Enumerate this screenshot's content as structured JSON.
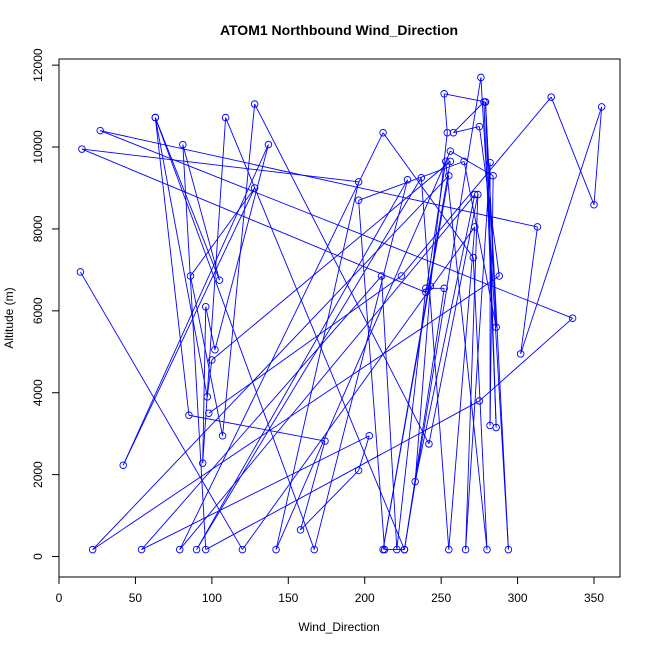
{
  "chart_data": {
    "type": "line",
    "title": "ATOM1 Northbound Wind_Direction",
    "xlabel": "Wind_Direction",
    "ylabel": "Altitude (m)",
    "xlim": [
      0,
      367
    ],
    "ylim": [
      -500,
      12150
    ],
    "x_ticks": [
      0,
      50,
      100,
      150,
      200,
      250,
      300,
      350
    ],
    "y_ticks": [
      0,
      2000,
      4000,
      6000,
      8000,
      10000,
      12000
    ],
    "series_color": "#0000ff",
    "marker": "open-circle",
    "grid": false,
    "legend": "none",
    "points": [
      {
        "x": 14,
        "y": 6950
      },
      {
        "x": 120,
        "y": 170
      },
      {
        "x": 272,
        "y": 8050
      },
      {
        "x": 255,
        "y": 170
      },
      {
        "x": 237,
        "y": 9250
      },
      {
        "x": 90,
        "y": 170
      },
      {
        "x": 228,
        "y": 9200
      },
      {
        "x": 167,
        "y": 170
      },
      {
        "x": 63,
        "y": 10720
      },
      {
        "x": 97,
        "y": 3900
      },
      {
        "x": 100,
        "y": 4800
      },
      {
        "x": 256,
        "y": 9650
      },
      {
        "x": 212,
        "y": 170
      },
      {
        "x": 255,
        "y": 9300
      },
      {
        "x": 22,
        "y": 170
      },
      {
        "x": 288,
        "y": 6850
      },
      {
        "x": 275,
        "y": 10500
      },
      {
        "x": 258,
        "y": 10350
      },
      {
        "x": 278,
        "y": 11100
      },
      {
        "x": 286,
        "y": 3150
      },
      {
        "x": 279,
        "y": 11100
      },
      {
        "x": 294,
        "y": 170
      },
      {
        "x": 276,
        "y": 11700
      },
      {
        "x": 226,
        "y": 170
      },
      {
        "x": 109,
        "y": 10720
      },
      {
        "x": 94,
        "y": 2280
      },
      {
        "x": 96,
        "y": 6100
      },
      {
        "x": 102,
        "y": 5050
      },
      {
        "x": 137,
        "y": 10060
      },
      {
        "x": 42,
        "y": 2230
      },
      {
        "x": 128,
        "y": 9000
      },
      {
        "x": 86,
        "y": 6850
      },
      {
        "x": 107,
        "y": 2950
      },
      {
        "x": 128,
        "y": 11050
      },
      {
        "x": 242,
        "y": 2750
      },
      {
        "x": 274,
        "y": 8840
      },
      {
        "x": 266,
        "y": 170
      },
      {
        "x": 282,
        "y": 9620
      },
      {
        "x": 282,
        "y": 3200
      },
      {
        "x": 284,
        "y": 9300
      },
      {
        "x": 256,
        "y": 9900
      },
      {
        "x": 142,
        "y": 170
      },
      {
        "x": 196,
        "y": 9150
      },
      {
        "x": 15,
        "y": 9950
      },
      {
        "x": 240,
        "y": 6450
      },
      {
        "x": 253,
        "y": 9650
      },
      {
        "x": 280,
        "y": 170
      },
      {
        "x": 271,
        "y": 7300
      },
      {
        "x": 212,
        "y": 10350
      },
      {
        "x": 79,
        "y": 170
      },
      {
        "x": 272,
        "y": 8840
      },
      {
        "x": 233,
        "y": 1830
      },
      {
        "x": 243,
        "y": 6600
      },
      {
        "x": 254,
        "y": 10350
      },
      {
        "x": 252,
        "y": 11300
      },
      {
        "x": 279,
        "y": 11100
      },
      {
        "x": 286,
        "y": 5600
      },
      {
        "x": 265,
        "y": 9650
      },
      {
        "x": 196,
        "y": 8700
      },
      {
        "x": 213,
        "y": 170
      },
      {
        "x": 226,
        "y": 170
      },
      {
        "x": 252,
        "y": 6550
      },
      {
        "x": 240,
        "y": 6550
      },
      {
        "x": 221,
        "y": 170
      },
      {
        "x": 211,
        "y": 6850
      },
      {
        "x": 54,
        "y": 170
      },
      {
        "x": 203,
        "y": 2950
      },
      {
        "x": 196,
        "y": 2100
      },
      {
        "x": 158,
        "y": 650
      },
      {
        "x": 174,
        "y": 2820
      },
      {
        "x": 85,
        "y": 3450
      },
      {
        "x": 63,
        "y": 10720
      },
      {
        "x": 105,
        "y": 6750
      },
      {
        "x": 81,
        "y": 10060
      },
      {
        "x": 96,
        "y": 170
      },
      {
        "x": 275,
        "y": 3800
      },
      {
        "x": 336,
        "y": 5820
      },
      {
        "x": 27,
        "y": 10400
      },
      {
        "x": 313,
        "y": 8050
      },
      {
        "x": 302,
        "y": 4950
      },
      {
        "x": 355,
        "y": 10980
      },
      {
        "x": 350,
        "y": 8590
      },
      {
        "x": 322,
        "y": 11220
      },
      {
        "x": 224,
        "y": 6850
      },
      {
        "x": 98,
        "y": 3500
      }
    ]
  }
}
